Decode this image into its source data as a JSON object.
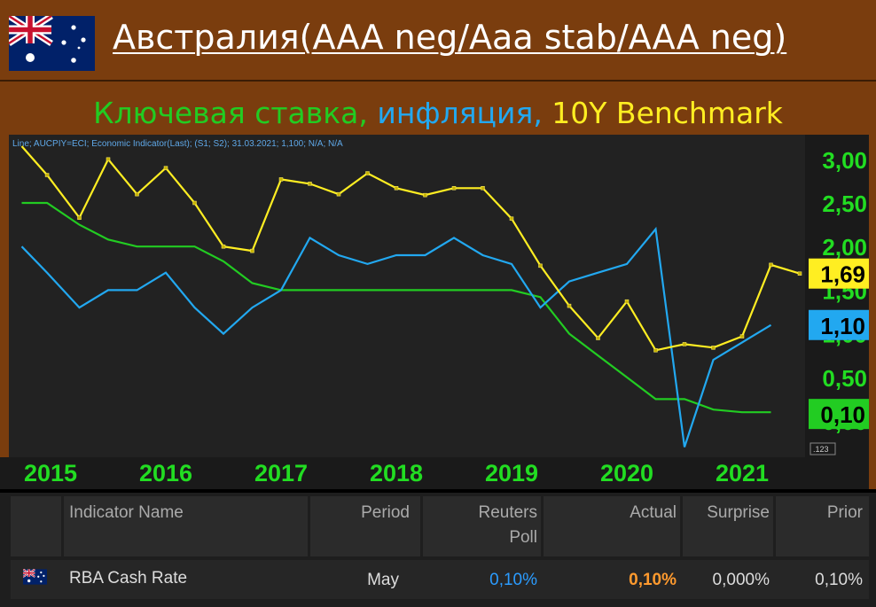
{
  "header": {
    "title": "Австралия(AAA neg/Aaa stab/AAA neg)",
    "flag_icon": "australia-flag-icon"
  },
  "subtitle": {
    "part1": "Ключевая ставка, ",
    "part2": "инфляция, ",
    "part3": "10Y Benchmark",
    "colors": {
      "rate": "#22cc22",
      "inflation": "#22a8f0",
      "benchmark": "#ffee22"
    }
  },
  "chart_info_text": "Line; AUCPIY=ECI; Economic Indicator(Last); (S1; S2); 31.03.2021; 1,100; N/A; N/A",
  "chart_badge_text": ".123",
  "chart_data": {
    "type": "line",
    "x_ticks": [
      "2015",
      "2016",
      "2017",
      "2018",
      "2019",
      "2020",
      "2021"
    ],
    "y_ticks": [
      "3,00",
      "2,50",
      "2,00",
      "1,50",
      "1,00",
      "0,50",
      "0,00"
    ],
    "ylim": [
      -0.15,
      3.2
    ],
    "grid": false,
    "series": [
      {
        "key": "rate",
        "color": "#22cc22",
        "last_label": "0,10",
        "points": [
          [
            2014.75,
            2.5
          ],
          [
            2014.97,
            2.5
          ],
          [
            2015.25,
            2.25
          ],
          [
            2015.5,
            2.08
          ],
          [
            2015.75,
            2.0
          ],
          [
            2016.0,
            2.0
          ],
          [
            2016.25,
            2.0
          ],
          [
            2016.5,
            1.83
          ],
          [
            2016.75,
            1.58
          ],
          [
            2017.0,
            1.5
          ],
          [
            2018.0,
            1.5
          ],
          [
            2019.0,
            1.5
          ],
          [
            2019.25,
            1.42
          ],
          [
            2019.5,
            1.0
          ],
          [
            2019.75,
            0.75
          ],
          [
            2020.0,
            0.5
          ],
          [
            2020.25,
            0.25
          ],
          [
            2020.5,
            0.25
          ],
          [
            2020.75,
            0.13
          ],
          [
            2021.0,
            0.1
          ],
          [
            2021.25,
            0.1
          ]
        ]
      },
      {
        "key": "inflation",
        "color": "#22a8f0",
        "last_label": "1,10",
        "points": [
          [
            2014.75,
            2.0
          ],
          [
            2014.97,
            1.7
          ],
          [
            2015.25,
            1.3
          ],
          [
            2015.5,
            1.5
          ],
          [
            2015.75,
            1.5
          ],
          [
            2016.0,
            1.7
          ],
          [
            2016.25,
            1.3
          ],
          [
            2016.5,
            1.0
          ],
          [
            2016.75,
            1.3
          ],
          [
            2017.0,
            1.5
          ],
          [
            2017.25,
            2.1
          ],
          [
            2017.5,
            1.9
          ],
          [
            2017.75,
            1.8
          ],
          [
            2018.0,
            1.9
          ],
          [
            2018.25,
            1.9
          ],
          [
            2018.5,
            2.1
          ],
          [
            2018.75,
            1.9
          ],
          [
            2019.0,
            1.8
          ],
          [
            2019.25,
            1.3
          ],
          [
            2019.5,
            1.6
          ],
          [
            2019.75,
            1.7
          ],
          [
            2020.0,
            1.8
          ],
          [
            2020.25,
            2.2
          ],
          [
            2020.5,
            -0.3
          ],
          [
            2020.75,
            0.7
          ],
          [
            2021.0,
            0.9
          ],
          [
            2021.25,
            1.1
          ]
        ]
      },
      {
        "key": "benchmark",
        "color": "#ffee22",
        "last_label": "1,69",
        "points": [
          [
            2014.75,
            3.15
          ],
          [
            2014.97,
            2.82
          ],
          [
            2015.25,
            2.33
          ],
          [
            2015.5,
            3.0
          ],
          [
            2015.75,
            2.6
          ],
          [
            2016.0,
            2.9
          ],
          [
            2016.25,
            2.5
          ],
          [
            2016.5,
            2.0
          ],
          [
            2016.75,
            1.95
          ],
          [
            2017.0,
            2.77
          ],
          [
            2017.25,
            2.72
          ],
          [
            2017.5,
            2.6
          ],
          [
            2017.75,
            2.84
          ],
          [
            2018.0,
            2.67
          ],
          [
            2018.25,
            2.59
          ],
          [
            2018.5,
            2.67
          ],
          [
            2018.75,
            2.67
          ],
          [
            2019.0,
            2.32
          ],
          [
            2019.25,
            1.78
          ],
          [
            2019.5,
            1.32
          ],
          [
            2019.75,
            0.95
          ],
          [
            2020.0,
            1.37
          ],
          [
            2020.25,
            0.81
          ],
          [
            2020.5,
            0.88
          ],
          [
            2020.75,
            0.84
          ],
          [
            2021.0,
            0.97
          ],
          [
            2021.25,
            1.79
          ],
          [
            2021.5,
            1.69
          ]
        ]
      }
    ]
  },
  "table": {
    "headers": {
      "indicator": "Indicator Name",
      "period": "Period",
      "poll_line1": "Reuters",
      "poll_line2": "Poll",
      "actual": "Actual",
      "surprise": "Surprise",
      "prior": "Prior"
    },
    "row": {
      "flag_icon": "australia-flag-icon",
      "indicator": "RBA Cash Rate",
      "period": "May",
      "poll": "0,10%",
      "actual": "0,10%",
      "surprise": "0,000%",
      "prior": "0,10%"
    },
    "colors": {
      "poll": "#2b9cff",
      "actual": "#ff9a2e",
      "text": "#dddddd"
    }
  }
}
